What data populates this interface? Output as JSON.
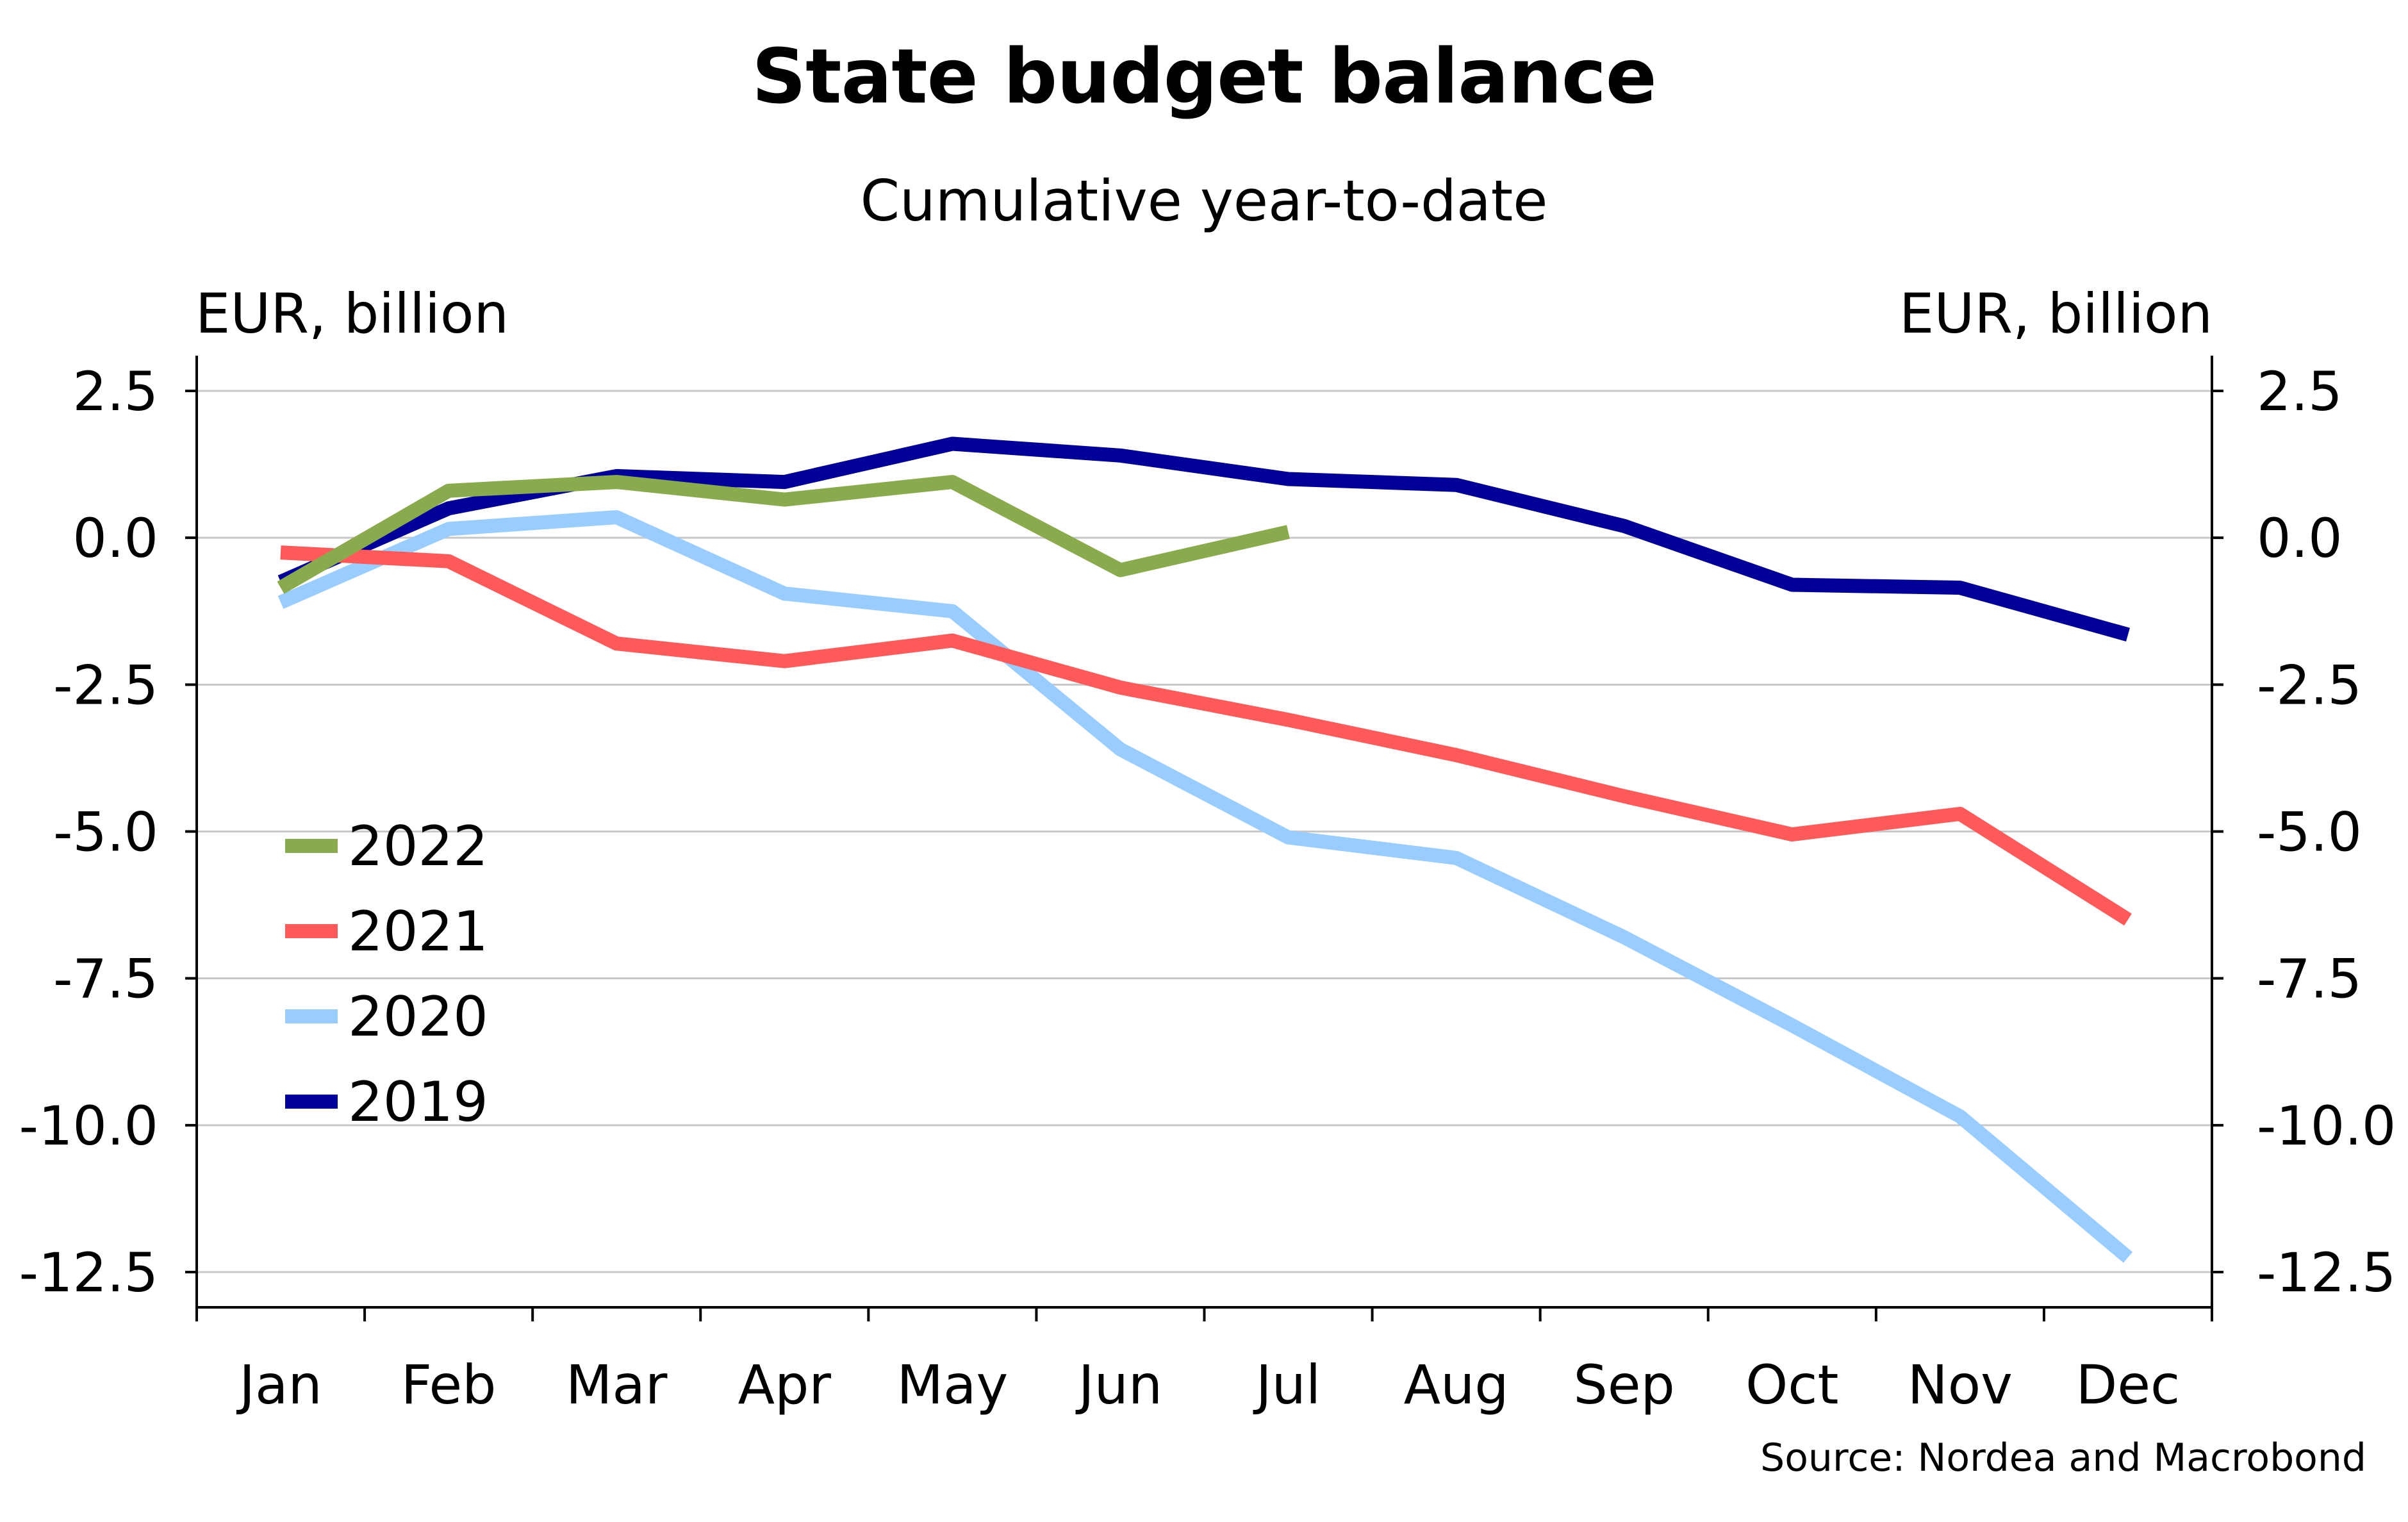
{
  "chart_data": {
    "type": "line",
    "title": "State budget balance",
    "subtitle": "Cumulative year-to-date",
    "ylabel_left": "EUR, billion",
    "ylabel_right": "EUR, billion",
    "source": "Source: Nordea and Macrobond",
    "categories": [
      "Jan",
      "Feb",
      "Mar",
      "Apr",
      "May",
      "Jun",
      "Jul",
      "Aug",
      "Sep",
      "Oct",
      "Nov",
      "Dec"
    ],
    "ylim": [
      -13.1,
      3.1
    ],
    "yticks": [
      2.5,
      0.0,
      -2.5,
      -5.0,
      -7.5,
      -10.0,
      -12.5
    ],
    "ytick_labels": [
      "2.5",
      "0.0",
      "-2.5",
      "-5.0",
      "-7.5",
      "-10.0",
      "-12.5"
    ],
    "grid": true,
    "legend_position": "lower-left",
    "series": [
      {
        "name": "2022",
        "color": "#8aab4d",
        "values": [
          -0.85,
          0.8,
          0.95,
          0.65,
          0.95,
          -0.55,
          0.1,
          null,
          null,
          null,
          null,
          null
        ]
      },
      {
        "name": "2021",
        "color": "#ff5a5a",
        "values": [
          -0.25,
          -0.4,
          -1.8,
          -2.1,
          -1.75,
          -2.55,
          -3.1,
          -3.7,
          -4.4,
          -5.05,
          -4.7,
          -6.5
        ]
      },
      {
        "name": "2020",
        "color": "#99ccff",
        "values": [
          -1.1,
          0.15,
          0.35,
          -0.95,
          -1.25,
          -3.6,
          -5.1,
          -5.45,
          -6.8,
          -8.3,
          -9.85,
          -12.25
        ]
      },
      {
        "name": "2019",
        "color": "#000099",
        "values": [
          -0.75,
          0.5,
          1.05,
          0.95,
          1.6,
          1.4,
          1.0,
          0.9,
          0.2,
          -0.8,
          -0.85,
          -1.65
        ]
      }
    ],
    "legend_order": [
      "2022",
      "2021",
      "2020",
      "2019"
    ]
  }
}
